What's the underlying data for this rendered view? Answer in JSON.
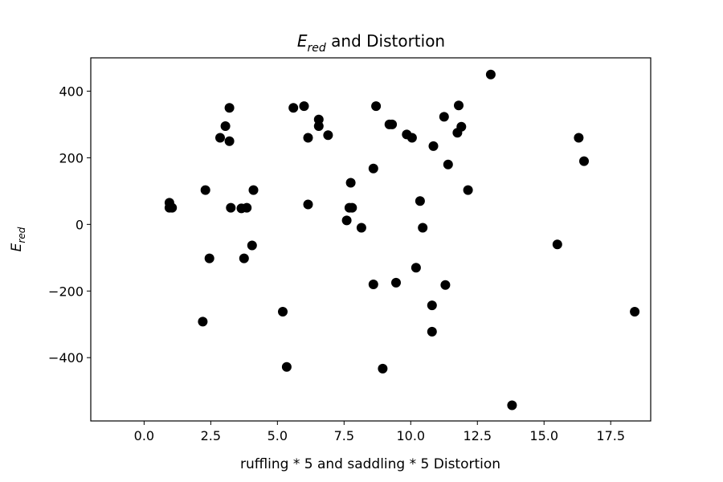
{
  "chart_data": {
    "type": "scatter",
    "title_main": "E",
    "title_sub": "red",
    "title_rest": " and Distortion",
    "xlabel": "ruffling * 5 and saddling * 5 Distortion",
    "ylabel_main": "E",
    "ylabel_sub": "red",
    "xlim": [
      -2.0,
      19.0
    ],
    "ylim": [
      -590,
      500
    ],
    "xticks": [
      0.0,
      2.5,
      5.0,
      7.5,
      10.0,
      12.5,
      15.0,
      17.5
    ],
    "xtick_labels": [
      "0.0",
      "2.5",
      "5.0",
      "7.5",
      "10.0",
      "12.5",
      "15.0",
      "17.5"
    ],
    "yticks": [
      -400,
      -200,
      0,
      200,
      400
    ],
    "ytick_labels": [
      "−400",
      "−200",
      "0",
      "200",
      "400"
    ],
    "marker_color": "#000000",
    "points": [
      {
        "x": 0.95,
        "y": 65
      },
      {
        "x": 0.95,
        "y": 50
      },
      {
        "x": 1.05,
        "y": 50
      },
      {
        "x": 2.2,
        "y": -292
      },
      {
        "x": 2.3,
        "y": 103
      },
      {
        "x": 2.45,
        "y": -102
      },
      {
        "x": 2.85,
        "y": 260
      },
      {
        "x": 3.05,
        "y": 295
      },
      {
        "x": 3.2,
        "y": 350
      },
      {
        "x": 3.2,
        "y": 250
      },
      {
        "x": 3.25,
        "y": 50
      },
      {
        "x": 3.65,
        "y": 48
      },
      {
        "x": 3.75,
        "y": -102
      },
      {
        "x": 3.85,
        "y": 50
      },
      {
        "x": 4.05,
        "y": -63
      },
      {
        "x": 4.1,
        "y": 103
      },
      {
        "x": 5.2,
        "y": -262
      },
      {
        "x": 5.35,
        "y": -428
      },
      {
        "x": 5.6,
        "y": 350
      },
      {
        "x": 6.0,
        "y": 355
      },
      {
        "x": 6.15,
        "y": 260
      },
      {
        "x": 6.15,
        "y": 60
      },
      {
        "x": 6.55,
        "y": 315
      },
      {
        "x": 6.55,
        "y": 295
      },
      {
        "x": 6.9,
        "y": 268
      },
      {
        "x": 7.6,
        "y": 12
      },
      {
        "x": 7.7,
        "y": 50
      },
      {
        "x": 7.75,
        "y": 125
      },
      {
        "x": 7.8,
        "y": 50
      },
      {
        "x": 8.15,
        "y": -10
      },
      {
        "x": 8.6,
        "y": -180
      },
      {
        "x": 8.6,
        "y": 168
      },
      {
        "x": 8.7,
        "y": 355
      },
      {
        "x": 8.95,
        "y": -433
      },
      {
        "x": 9.2,
        "y": 300
      },
      {
        "x": 9.3,
        "y": 300
      },
      {
        "x": 9.45,
        "y": -175
      },
      {
        "x": 9.85,
        "y": 270
      },
      {
        "x": 10.05,
        "y": 260
      },
      {
        "x": 10.2,
        "y": -130
      },
      {
        "x": 10.35,
        "y": 70
      },
      {
        "x": 10.45,
        "y": -10
      },
      {
        "x": 10.8,
        "y": -243
      },
      {
        "x": 10.8,
        "y": -322
      },
      {
        "x": 10.85,
        "y": 235
      },
      {
        "x": 11.25,
        "y": 323
      },
      {
        "x": 11.3,
        "y": -182
      },
      {
        "x": 11.4,
        "y": 180
      },
      {
        "x": 11.75,
        "y": 275
      },
      {
        "x": 11.8,
        "y": 357
      },
      {
        "x": 11.9,
        "y": 293
      },
      {
        "x": 12.15,
        "y": 103
      },
      {
        "x": 13.0,
        "y": 450
      },
      {
        "x": 13.8,
        "y": -543
      },
      {
        "x": 15.5,
        "y": -60
      },
      {
        "x": 16.3,
        "y": 260
      },
      {
        "x": 16.5,
        "y": 190
      },
      {
        "x": 18.4,
        "y": -262
      }
    ]
  }
}
